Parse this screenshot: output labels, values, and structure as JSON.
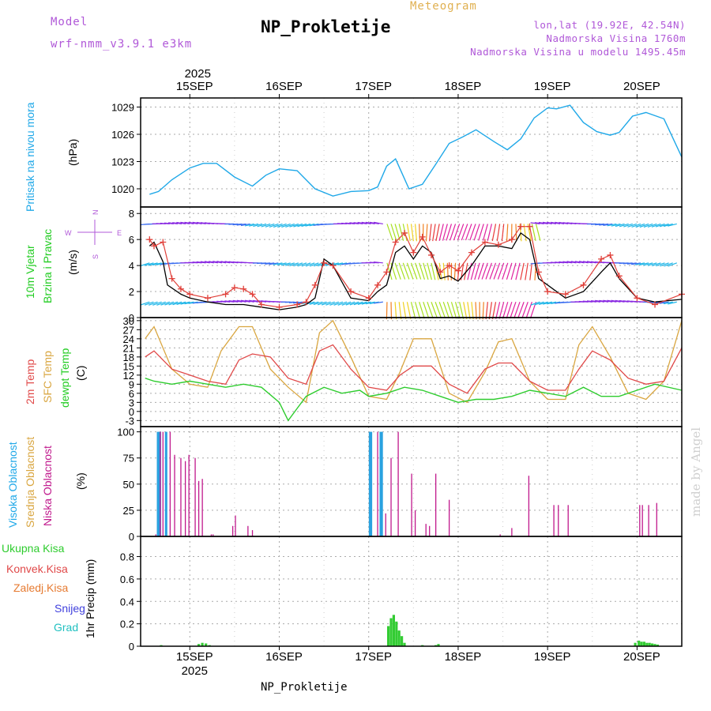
{
  "header": {
    "model_label": "Model",
    "model_name": "wrf-nmm_v3.9.1  e3km",
    "title": "NP_Prokletije",
    "subtitle": "Meteogram",
    "coords": "lon,lat (19.92E, 42.54N)",
    "altitude": "Nadmorska Visina 1760m",
    "model_altitude": "Nadmorska Visina u modelu 1495.45m",
    "footer_station": "NP_Prokletije",
    "credit": "made by Angel"
  },
  "colors": {
    "pressure": "#1fa8e8",
    "wind_speed": "#000000",
    "gust": "#e0403a",
    "t2m": "#e04848",
    "tsfc": "#d9a640",
    "dewpt": "#2ecc2e",
    "high_cloud": "#2aa2e0",
    "mid_cloud": "#e0b030",
    "low_cloud": "#c0188c",
    "precip": "#33cc33",
    "grid": "#aaaaaa"
  },
  "chart_data": [
    {
      "type": "line",
      "title": "Pritisak na nivou mora",
      "ylabel": "(hPa)",
      "ylim": [
        1018,
        1030
      ],
      "yticks": [
        1020,
        1023,
        1026,
        1029
      ],
      "ytick_labels": [
        "1020",
        "1023",
        "1026",
        "1029"
      ],
      "x_days": [
        14.5,
        15,
        15.5,
        16,
        16.5,
        17,
        17.5,
        18,
        18.5,
        19,
        19.5,
        20,
        20.5
      ],
      "series": [
        {
          "name": "MSLP",
          "x": [
            14.55,
            14.65,
            14.8,
            15.0,
            15.15,
            15.3,
            15.5,
            15.7,
            15.85,
            16.0,
            16.2,
            16.4,
            16.6,
            16.8,
            17.0,
            17.1,
            17.2,
            17.3,
            17.45,
            17.6,
            17.75,
            17.9,
            18.05,
            18.2,
            18.4,
            18.55,
            18.7,
            18.85,
            19.0,
            19.1,
            19.25,
            19.4,
            19.55,
            19.7,
            19.8,
            19.95,
            20.1,
            20.3,
            20.5
          ],
          "values": [
            1019.4,
            1019.7,
            1021.0,
            1022.3,
            1022.8,
            1022.8,
            1021.3,
            1020.3,
            1021.5,
            1022.2,
            1022.0,
            1020.0,
            1019.2,
            1019.7,
            1019.8,
            1020.2,
            1022.5,
            1023.3,
            1020.0,
            1020.5,
            1022.7,
            1025.0,
            1025.7,
            1026.5,
            1025.2,
            1024.3,
            1025.5,
            1027.8,
            1028.9,
            1028.8,
            1029.2,
            1027.3,
            1026.3,
            1025.9,
            1026.2,
            1028.0,
            1028.4,
            1027.7,
            1023.5
          ]
        }
      ]
    },
    {
      "type": "line",
      "title": "10m Vjetar Brzina i Pravac",
      "ylabel": "(m/s)",
      "ylim": [
        0,
        8.5
      ],
      "yticks": [
        0,
        2,
        4,
        6,
        8
      ],
      "ytick_labels": [
        "0",
        "2",
        "4",
        "6",
        "8"
      ],
      "compass_legend": [
        "N",
        "W",
        "E",
        "S"
      ],
      "series": [
        {
          "name": "Wind speed",
          "x": [
            14.55,
            14.6,
            14.7,
            14.75,
            14.9,
            15.0,
            15.2,
            15.4,
            15.6,
            15.8,
            16.0,
            16.2,
            16.3,
            16.4,
            16.5,
            16.6,
            16.8,
            17.0,
            17.1,
            17.2,
            17.3,
            17.4,
            17.5,
            17.6,
            17.7,
            17.8,
            17.9,
            18.0,
            18.15,
            18.3,
            18.45,
            18.6,
            18.7,
            18.8,
            18.9,
            19.0,
            19.2,
            19.4,
            19.6,
            19.7,
            19.8,
            20.0,
            20.2,
            20.5
          ],
          "values": [
            5.5,
            5.8,
            4.3,
            2.5,
            1.8,
            1.5,
            1.2,
            1.0,
            1.0,
            0.8,
            0.6,
            0.8,
            1.0,
            1.5,
            4.5,
            4.0,
            1.5,
            1.3,
            2.0,
            2.5,
            5.0,
            5.5,
            4.5,
            5.5,
            5.0,
            3.0,
            3.2,
            2.8,
            4.0,
            5.5,
            5.5,
            5.3,
            6.5,
            6.0,
            3.0,
            2.5,
            1.5,
            2.0,
            3.5,
            4.2,
            3.0,
            1.5,
            1.2,
            1.4
          ]
        },
        {
          "name": "Gust",
          "x": [
            14.55,
            14.6,
            14.7,
            14.8,
            14.9,
            15.0,
            15.2,
            15.4,
            15.5,
            15.6,
            15.7,
            15.8,
            16.0,
            16.2,
            16.3,
            16.4,
            16.5,
            16.6,
            16.8,
            17.0,
            17.1,
            17.2,
            17.3,
            17.4,
            17.5,
            17.6,
            17.7,
            17.8,
            17.9,
            18.0,
            18.15,
            18.3,
            18.45,
            18.6,
            18.7,
            18.8,
            18.9,
            19.0,
            19.2,
            19.4,
            19.6,
            19.7,
            19.8,
            20.0,
            20.2,
            20.5
          ],
          "values": [
            6.0,
            5.5,
            5.8,
            3.0,
            2.2,
            1.8,
            1.5,
            1.8,
            2.3,
            2.2,
            1.8,
            1.0,
            0.8,
            1.0,
            1.2,
            2.5,
            4.2,
            4.0,
            2.0,
            1.5,
            2.5,
            3.5,
            5.8,
            6.5,
            5.0,
            6.2,
            4.8,
            3.5,
            4.0,
            3.6,
            5.0,
            5.8,
            5.6,
            6.0,
            7.0,
            7.0,
            3.5,
            2.0,
            1.8,
            2.5,
            4.5,
            4.8,
            3.2,
            1.5,
            1.0,
            1.8
          ]
        }
      ]
    },
    {
      "type": "line",
      "title": "2m Temp / SFC Temp / dewpt Temp",
      "ylabel": "(C)",
      "ylim": [
        -5,
        31
      ],
      "yticks": [
        -3,
        0,
        3,
        6,
        9,
        12,
        15,
        18,
        21,
        24,
        27,
        30
      ],
      "ytick_labels": [
        "-3",
        "0",
        "3",
        "6",
        "9",
        "12",
        "15",
        "18",
        "21",
        "24",
        "27",
        "30"
      ],
      "series": [
        {
          "name": "2m Temp",
          "x": [
            14.5,
            14.6,
            14.8,
            15.0,
            15.2,
            15.4,
            15.55,
            15.7,
            15.9,
            16.1,
            16.3,
            16.45,
            16.6,
            16.8,
            17.0,
            17.2,
            17.35,
            17.5,
            17.7,
            17.9,
            18.1,
            18.3,
            18.45,
            18.6,
            18.8,
            19.0,
            19.2,
            19.35,
            19.5,
            19.7,
            19.9,
            20.1,
            20.3,
            20.5
          ],
          "values": [
            18,
            20,
            14,
            12,
            10,
            9,
            17,
            19,
            18,
            11,
            9,
            20,
            22,
            14,
            8,
            7,
            12,
            15,
            15,
            9,
            6,
            14,
            16,
            16,
            10,
            7,
            7,
            14,
            20,
            17,
            11,
            9,
            10,
            21
          ]
        },
        {
          "name": "SFC Temp",
          "x": [
            14.5,
            14.6,
            14.8,
            15.0,
            15.2,
            15.35,
            15.55,
            15.7,
            15.9,
            16.1,
            16.3,
            16.45,
            16.6,
            16.8,
            17.0,
            17.2,
            17.35,
            17.5,
            17.7,
            17.9,
            18.1,
            18.3,
            18.45,
            18.6,
            18.8,
            19.0,
            19.2,
            19.35,
            19.5,
            19.7,
            19.9,
            20.1,
            20.3,
            20.5
          ],
          "values": [
            24,
            28,
            14,
            9,
            8,
            20,
            28,
            28,
            14,
            8,
            3,
            26,
            30,
            18,
            5,
            4,
            13,
            24,
            24,
            6,
            3,
            13,
            23,
            24,
            10,
            4,
            4,
            22,
            28,
            18,
            6,
            4,
            10,
            30
          ]
        },
        {
          "name": "dewpt Temp",
          "x": [
            14.5,
            14.6,
            14.8,
            15.0,
            15.2,
            15.4,
            15.6,
            15.8,
            16.0,
            16.1,
            16.2,
            16.3,
            16.5,
            16.7,
            16.9,
            17.0,
            17.2,
            17.4,
            17.6,
            17.8,
            18.0,
            18.2,
            18.4,
            18.6,
            18.8,
            19.0,
            19.2,
            19.4,
            19.6,
            19.8,
            20.0,
            20.2,
            20.5
          ],
          "values": [
            11,
            10,
            9,
            10,
            9,
            8,
            9,
            8,
            3,
            -3,
            1,
            5,
            8,
            6,
            7,
            5,
            6,
            8,
            7,
            5,
            3,
            4,
            4,
            5,
            7,
            6,
            5,
            8,
            5,
            5,
            7,
            9,
            7
          ]
        }
      ]
    },
    {
      "type": "bar",
      "title": "Visoka Oblacnost / Srednja Oblacnost / Niska Oblacnost",
      "ylabel": "(%)",
      "ylim": [
        0,
        105
      ],
      "yticks": [
        0,
        25,
        50,
        75,
        100
      ],
      "ytick_labels": [
        "0",
        "25",
        "50",
        "75",
        "100"
      ],
      "series": [
        {
          "name": "Visoka Oblacnost",
          "x": [
            14.64,
            14.65,
            14.66,
            14.67,
            14.73,
            14.74,
            17.01,
            17.02,
            17.03,
            17.13,
            17.14,
            17.15
          ],
          "values": [
            100,
            100,
            100,
            100,
            100,
            100,
            100,
            100,
            100,
            100,
            100,
            100
          ]
        },
        {
          "name": "Niska Oblacnost",
          "x": [
            14.62,
            14.67,
            14.7,
            14.78,
            14.83,
            14.9,
            14.95,
            14.99,
            15.06,
            15.1,
            15.14,
            15.24,
            15.26,
            15.48,
            15.51,
            15.65,
            15.7,
            17.1,
            17.19,
            17.25,
            17.33,
            17.48,
            17.52,
            17.64,
            17.68,
            17.75,
            17.9,
            18.47,
            18.6,
            18.79,
            19.07,
            19.12,
            19.23,
            20.03,
            20.06,
            20.13,
            20.22
          ],
          "values": [
            2,
            100,
            100,
            100,
            78,
            75,
            72,
            78,
            75,
            53,
            55,
            2,
            2,
            10,
            20,
            10,
            6,
            100,
            22,
            75,
            100,
            60,
            25,
            12,
            10,
            60,
            35,
            2,
            8,
            58,
            30,
            30,
            30,
            30,
            30,
            30,
            32
          ]
        }
      ]
    },
    {
      "type": "bar",
      "title": "1hr Precip",
      "ylabel": "1hr Precip (mm)",
      "ylim": [
        0,
        0.98
      ],
      "yticks": [
        0,
        0.2,
        0.4,
        0.6,
        0.8
      ],
      "ytick_labels": [
        "0",
        "0.2",
        "0.4",
        "0.6",
        "0.8"
      ],
      "legend": [
        "Ukupna Kisa",
        "Konvek.Kisa",
        "Zaledj.Kisa",
        "Snijeg",
        "Grad"
      ],
      "series": [
        {
          "name": "Ukupna Kisa",
          "x": [
            14.68,
            15.1,
            15.14,
            15.18,
            15.22,
            17.22,
            17.25,
            17.28,
            17.31,
            17.34,
            17.37,
            17.4,
            17.6,
            17.75,
            17.78,
            19.98,
            20.02,
            20.05,
            20.08,
            20.11,
            20.14,
            20.17,
            20.2,
            20.23
          ],
          "values": [
            0.01,
            0.02,
            0.03,
            0.025,
            0.01,
            0.18,
            0.25,
            0.28,
            0.22,
            0.14,
            0.09,
            0.03,
            0.01,
            0.01,
            0.02,
            0.03,
            0.05,
            0.04,
            0.04,
            0.03,
            0.03,
            0.025,
            0.02,
            0.015
          ]
        }
      ]
    }
  ],
  "axis": {
    "top_year": "2025",
    "bottom_year": "2025",
    "day_labels": [
      "15SEP",
      "16SEP",
      "17SEP",
      "18SEP",
      "19SEP",
      "20SEP"
    ],
    "day_values": [
      15,
      16,
      17,
      18,
      19,
      20
    ]
  },
  "panel_labels": {
    "pressure": "Pritisak na nivou mora",
    "pressure_unit": "(hPa)",
    "wind1": "10m Vjetar",
    "wind2": "Brzina i Pravac",
    "wind_unit": "(m/s)",
    "t2m": "2m Temp",
    "tsfc": "SFC Temp",
    "dewpt": "dewpt Temp",
    "temp_unit": "(C)",
    "high_cloud": "Visoka Oblacnost",
    "mid_cloud": "Srednja Oblacnost",
    "low_cloud": "Niska Oblacnost",
    "cloud_unit": "(%)",
    "precip_unit": "1hr Precip (mm)"
  },
  "compass": {
    "n": "N",
    "w": "W",
    "e": "E",
    "s": "S"
  }
}
